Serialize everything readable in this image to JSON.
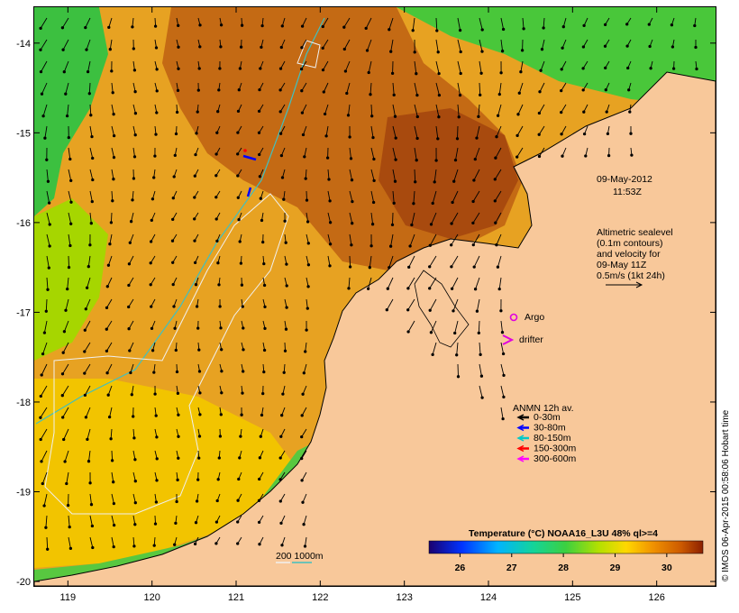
{
  "map": {
    "lon_range": [
      118.6,
      126.7
    ],
    "lat_range": [
      -20.05,
      -13.6
    ],
    "lon_ticks": [
      119,
      120,
      121,
      122,
      123,
      124,
      125,
      126
    ],
    "lat_ticks": [
      -14,
      -15,
      -16,
      -17,
      -18,
      -19,
      -20
    ],
    "lon_tick_labels": [
      "119",
      "120",
      "121",
      "122",
      "123",
      "124",
      "125",
      "126"
    ],
    "lat_tick_labels": [
      "-14",
      "-15",
      "-16",
      "-17",
      "-18",
      "-19",
      "-20"
    ]
  },
  "datetime_line1": "09-May-2012",
  "datetime_line2": "11:53Z",
  "altimetry_note": [
    "Altimetric sealevel",
    "(0.1m contours)",
    "and velocity for",
    "09-May 11Z",
    "0.5m/s (1kt 24h)"
  ],
  "legend_markers": {
    "argo_label": "Argo",
    "drifter_label": "drifter"
  },
  "anmn_legend": {
    "title": "ANMN 12h av.",
    "items": [
      {
        "label": "0-30m",
        "color": "#000000"
      },
      {
        "label": "30-80m",
        "color": "#0000ff"
      },
      {
        "label": "80-150m",
        "color": "#00c8c8"
      },
      {
        "label": "150-300m",
        "color": "#ff0000"
      },
      {
        "label": "300-600m",
        "color": "#ff00ff"
      }
    ]
  },
  "bathymetry_legend": {
    "label": "200  1000m"
  },
  "colorbar": {
    "title": "Temperature (°C) NOAA16_L3U 48% ql>=4",
    "min": 25.4,
    "max": 30.7,
    "tick_labels": [
      "26",
      "27",
      "28",
      "29",
      "30"
    ],
    "ticks": [
      26,
      27,
      28,
      29,
      30
    ]
  },
  "credit": "© IMOS 06-Apr-2015 00:58:06 Hobart time",
  "colors": {
    "land": "#f8c89a",
    "coastline": "#000000",
    "bathy_200": "#f0f0f0",
    "bathy_1000": "#40c0c0",
    "argo": "#e000e0",
    "drifter": "#e000e0"
  }
}
